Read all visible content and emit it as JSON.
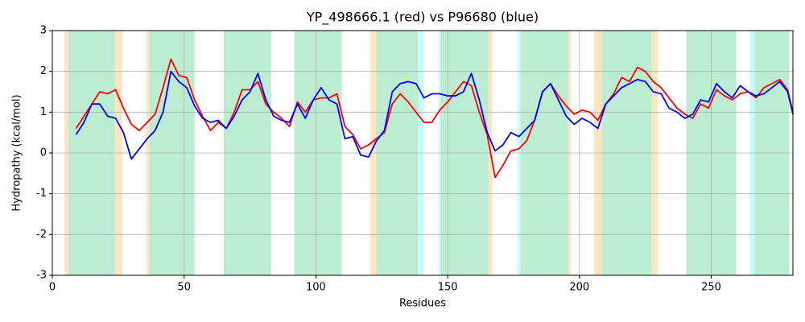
{
  "chart_data": {
    "type": "line",
    "title": "YP_498666.1 (red) vs P96680 (blue)",
    "x_label": "Residues",
    "y_label": "Hydropathy (kcal/mol)",
    "xlim": [
      0,
      281
    ],
    "ylim": [
      -3,
      3
    ],
    "xticks": [
      0,
      50,
      100,
      150,
      200,
      250
    ],
    "yticks": [
      -3,
      -2,
      -1,
      0,
      1,
      2,
      3
    ],
    "grid": true,
    "regions": [
      {
        "start": 4.6,
        "end": 6,
        "color": "#ffe4c0"
      },
      {
        "start": 6,
        "end": 23.8,
        "color": "#bcecd2"
      },
      {
        "start": 23.8,
        "end": 26.5,
        "color": "#ffe4c0"
      },
      {
        "start": 35.7,
        "end": 36.9,
        "color": "#ffe4c0"
      },
      {
        "start": 36.9,
        "end": 54,
        "color": "#bcecd2"
      },
      {
        "start": 65,
        "end": 83,
        "color": "#bcecd2"
      },
      {
        "start": 91.8,
        "end": 109.8,
        "color": "#bcecd2"
      },
      {
        "start": 120.7,
        "end": 122.9,
        "color": "#ffe4c0"
      },
      {
        "start": 122.9,
        "end": 138.7,
        "color": "#bcecd2"
      },
      {
        "start": 138.7,
        "end": 140.9,
        "color": "#c8fcfc"
      },
      {
        "start": 146.6,
        "end": 147.3,
        "color": "#c8fcfc"
      },
      {
        "start": 147.3,
        "end": 165.5,
        "color": "#bcecd2"
      },
      {
        "start": 165.5,
        "end": 166.8,
        "color": "#ffe4c0"
      },
      {
        "start": 176.5,
        "end": 177.7,
        "color": "#c8fcfc"
      },
      {
        "start": 177.7,
        "end": 195.7,
        "color": "#bcecd2"
      },
      {
        "start": 195.7,
        "end": 196.6,
        "color": "#ffe4c0"
      },
      {
        "start": 205.5,
        "end": 208.5,
        "color": "#ffe4c0"
      },
      {
        "start": 208.5,
        "end": 227.4,
        "color": "#bcecd2"
      },
      {
        "start": 227.4,
        "end": 229.6,
        "color": "#ffe4c0"
      },
      {
        "start": 240.5,
        "end": 259.5,
        "color": "#bcecd2"
      },
      {
        "start": 264.6,
        "end": 266.5,
        "color": "#c8fcfc"
      },
      {
        "start": 266.5,
        "end": 279.6,
        "color": "#bcecd2"
      }
    ],
    "x": [
      9,
      12,
      15,
      18,
      21,
      24,
      27,
      30,
      33,
      36,
      39,
      42,
      45,
      48,
      51,
      54,
      57,
      60,
      63,
      66,
      69,
      72,
      75,
      78,
      81,
      84,
      87,
      90,
      93,
      96,
      99,
      102,
      105,
      108,
      111,
      114,
      117,
      120,
      123,
      126,
      129,
      132,
      135,
      138,
      141,
      144,
      147,
      150,
      153,
      156,
      159,
      162,
      165,
      168,
      171,
      174,
      177,
      180,
      183,
      186,
      189,
      192,
      195,
      198,
      201,
      204,
      207,
      210,
      213,
      216,
      219,
      222,
      225,
      228,
      231,
      234,
      237,
      240,
      243,
      246,
      249,
      252,
      255,
      258,
      261,
      264,
      267,
      270,
      273,
      276,
      279,
      281
    ],
    "series": [
      {
        "color": "#ff0000",
        "values": [
          0.6,
          0.9,
          1.2,
          1.5,
          1.45,
          1.55,
          1.1,
          0.7,
          0.55,
          0.75,
          0.95,
          1.6,
          2.3,
          1.9,
          1.85,
          1.3,
          0.9,
          0.55,
          0.75,
          0.6,
          1.0,
          1.55,
          1.55,
          1.75,
          1.2,
          1.0,
          0.85,
          0.65,
          1.25,
          1.0,
          1.3,
          1.35,
          1.35,
          1.45,
          0.65,
          0.45,
          0.1,
          0.2,
          0.35,
          0.5,
          1.2,
          1.45,
          1.25,
          1.0,
          0.75,
          0.75,
          1.05,
          1.25,
          1.5,
          1.75,
          1.65,
          1.0,
          0.45,
          -0.6,
          -0.3,
          0.05,
          0.1,
          0.3,
          0.8,
          1.5,
          1.7,
          1.4,
          1.15,
          0.95,
          1.05,
          1.0,
          0.8,
          1.2,
          1.45,
          1.85,
          1.75,
          2.1,
          2.0,
          1.75,
          1.6,
          1.35,
          1.1,
          0.95,
          0.85,
          1.2,
          1.1,
          1.55,
          1.4,
          1.3,
          1.45,
          1.5,
          1.35,
          1.6,
          1.7,
          1.8,
          1.55,
          1.0
        ]
      },
      {
        "color": "#0000ff",
        "values": [
          0.45,
          0.75,
          1.2,
          1.2,
          0.9,
          0.85,
          0.5,
          -0.15,
          0.1,
          0.35,
          0.55,
          1.0,
          2.0,
          1.75,
          1.6,
          1.15,
          0.85,
          0.75,
          0.8,
          0.6,
          0.9,
          1.3,
          1.5,
          1.95,
          1.3,
          0.9,
          0.8,
          0.75,
          1.2,
          0.85,
          1.3,
          1.6,
          1.3,
          1.2,
          0.35,
          0.4,
          -0.05,
          -0.1,
          0.3,
          0.55,
          1.5,
          1.7,
          1.75,
          1.7,
          1.35,
          1.45,
          1.45,
          1.4,
          1.4,
          1.5,
          1.95,
          1.3,
          0.5,
          0.05,
          0.2,
          0.5,
          0.4,
          0.6,
          0.8,
          1.5,
          1.7,
          1.3,
          0.9,
          0.7,
          0.85,
          0.75,
          0.6,
          1.2,
          1.4,
          1.6,
          1.7,
          1.8,
          1.75,
          1.5,
          1.45,
          1.1,
          1.0,
          0.85,
          0.95,
          1.3,
          1.25,
          1.7,
          1.5,
          1.35,
          1.65,
          1.5,
          1.4,
          1.45,
          1.6,
          1.75,
          1.5,
          0.95
        ]
      }
    ]
  }
}
